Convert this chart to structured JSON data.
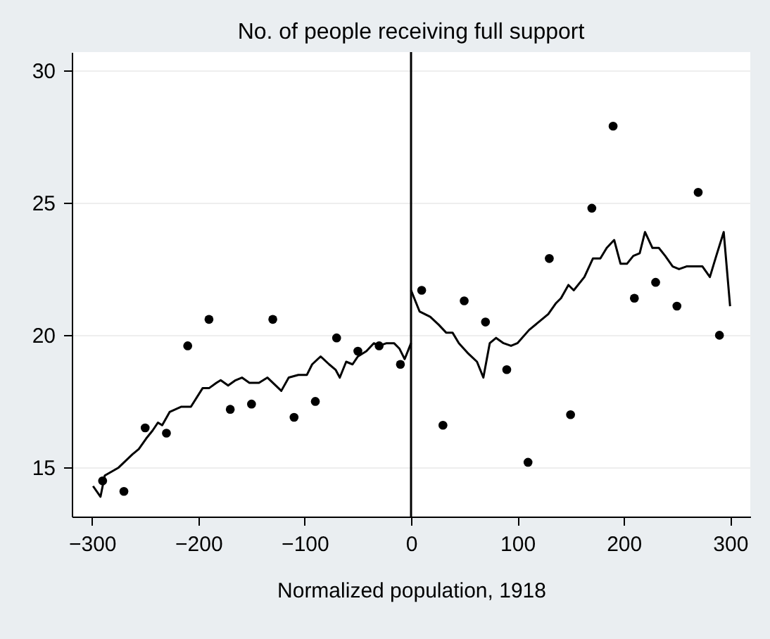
{
  "chart_data": {
    "type": "scatter",
    "title": "No. of people receiving full support",
    "xlabel": "Normalized population, 1918",
    "xlim": [
      -319,
      319
    ],
    "ylim": [
      13.15,
      30.7
    ],
    "xticks": [
      -300,
      -200,
      -100,
      0,
      100,
      200,
      300
    ],
    "yticks": [
      15,
      20,
      25,
      30
    ],
    "grid": "y",
    "ref_lines": [
      {
        "axis": "x",
        "value": 0,
        "color": "#000000"
      }
    ],
    "series": [
      {
        "marker": "circle",
        "color": "#000000",
        "x": [
          -290,
          -270,
          -250,
          -230,
          -210,
          -190,
          -170,
          -150,
          -130,
          -110,
          -90,
          -70,
          -50,
          -30,
          -10,
          10,
          30,
          50,
          70,
          90,
          110,
          130,
          150,
          170,
          190,
          210,
          230,
          250,
          270,
          290
        ],
        "values": [
          14.5,
          14.1,
          16.5,
          16.3,
          19.6,
          20.6,
          17.2,
          17.4,
          20.6,
          16.9,
          17.5,
          19.9,
          19.4,
          19.6,
          18.9,
          21.7,
          16.6,
          21.3,
          20.5,
          18.7,
          15.2,
          22.9,
          17.0,
          24.8,
          27.9,
          21.4,
          22.0,
          21.1,
          25.4,
          20.0
        ]
      },
      {
        "type": "line",
        "marker": "none",
        "line_style": "solid",
        "color": "#000000",
        "x": [
          -299,
          -292,
          -288,
          -275,
          -262,
          -256,
          -249,
          -243,
          -238,
          -234,
          -227,
          -216,
          -207,
          -196,
          -190,
          -183,
          -179,
          -172,
          -165,
          -159,
          -152,
          -143,
          -135,
          -122,
          -115,
          -106,
          -98,
          -93,
          -85,
          -77,
          -71,
          -67,
          -61,
          -55,
          -50,
          -42,
          -35,
          -30,
          -23,
          -16,
          -11,
          -6,
          0
        ],
        "values": [
          14.3,
          13.9,
          14.7,
          15.0,
          15.5,
          15.7,
          16.1,
          16.4,
          16.7,
          16.6,
          17.1,
          17.3,
          17.3,
          18.0,
          18.0,
          18.2,
          18.3,
          18.1,
          18.3,
          18.4,
          18.2,
          18.2,
          18.4,
          17.9,
          18.4,
          18.5,
          18.5,
          18.9,
          19.2,
          18.9,
          18.7,
          18.4,
          19.0,
          18.9,
          19.2,
          19.4,
          19.7,
          19.6,
          19.7,
          19.7,
          19.5,
          19.1,
          19.7
        ]
      },
      {
        "type": "line",
        "marker": "none",
        "line_style": "solid",
        "color": "#000000",
        "x": [
          0,
          8,
          18,
          26,
          33,
          39,
          45,
          54,
          62,
          68,
          74,
          80,
          87,
          94,
          100,
          111,
          120,
          129,
          136,
          141,
          148,
          153,
          163,
          171,
          178,
          184,
          191,
          197,
          203,
          209,
          215,
          220,
          227,
          233,
          239,
          246,
          252,
          259,
          274,
          281,
          287,
          294,
          300
        ],
        "values": [
          21.7,
          20.9,
          20.7,
          20.4,
          20.1,
          20.1,
          19.7,
          19.3,
          19.0,
          18.4,
          19.7,
          19.9,
          19.7,
          19.6,
          19.7,
          20.2,
          20.5,
          20.8,
          21.2,
          21.4,
          21.9,
          21.7,
          22.2,
          22.9,
          22.9,
          23.3,
          23.6,
          22.7,
          22.7,
          23.0,
          23.1,
          23.9,
          23.3,
          23.3,
          23.0,
          22.6,
          22.5,
          22.6,
          22.6,
          22.2,
          23.0,
          23.9,
          21.1
        ]
      }
    ]
  }
}
